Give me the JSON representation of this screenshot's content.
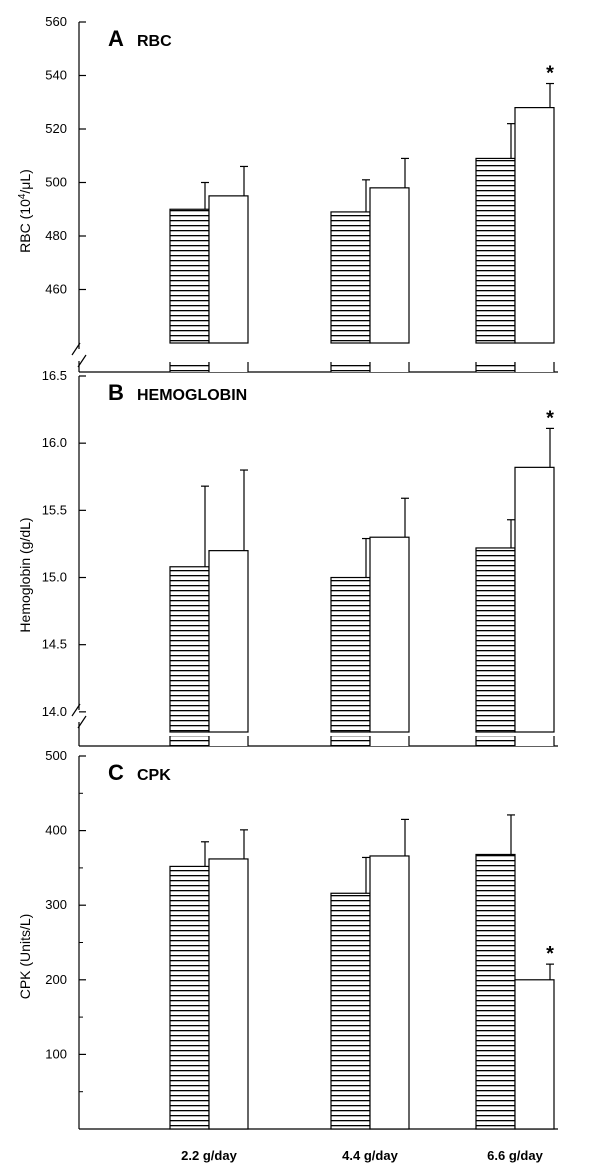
{
  "categories": [
    "2.2 g/day",
    "4.4 g/day",
    "6.6 g/day"
  ],
  "colors": {
    "line": "#000000",
    "stripe": "#000000",
    "open": "#ffffff"
  },
  "chart_data": [
    {
      "type": "bar",
      "letter": "A",
      "title": "RBC",
      "ylabel_main": "RBC (10",
      "ylabel_sup": "4",
      "ylabel_tail": "/μL)",
      "ylim": [
        440,
        560
      ],
      "ticks": [
        460,
        480,
        500,
        520,
        540,
        560
      ],
      "axis_break": true,
      "categories": [
        "2.2 g/day",
        "4.4 g/day",
        "6.6 g/day"
      ],
      "series": [
        {
          "pattern": "horizontal-stripes",
          "values": [
            490,
            489,
            509
          ],
          "errors": [
            10,
            12,
            13
          ]
        },
        {
          "pattern": "open",
          "values": [
            495,
            498,
            528
          ],
          "errors": [
            11,
            11,
            9
          ]
        }
      ],
      "significance": [
        {
          "category": "6.6 g/day",
          "series": 1,
          "label": "*"
        }
      ]
    },
    {
      "type": "bar",
      "letter": "B",
      "title": "HEMOGLOBIN",
      "ylabel_main": "Hemoglobin (g/dL)",
      "ylabel_sup": "",
      "ylabel_tail": "",
      "ylim": [
        13.85,
        16.5
      ],
      "ticks": [
        14.0,
        14.5,
        15.0,
        15.5,
        16.0,
        16.5
      ],
      "tick_decimals": 1,
      "axis_break": true,
      "categories": [
        "2.2 g/day",
        "4.4 g/day",
        "6.6 g/day"
      ],
      "series": [
        {
          "pattern": "horizontal-stripes",
          "values": [
            15.08,
            15.0,
            15.22
          ],
          "errors": [
            0.6,
            0.29,
            0.21
          ]
        },
        {
          "pattern": "open",
          "values": [
            15.2,
            15.3,
            15.82
          ],
          "errors": [
            0.6,
            0.29,
            0.29
          ]
        }
      ],
      "significance": [
        {
          "category": "6.6 g/day",
          "series": 1,
          "label": "*"
        }
      ]
    },
    {
      "type": "bar",
      "letter": "C",
      "title": "CPK",
      "ylabel_main": "CPK (Units/L)",
      "ylabel_sup": "",
      "ylabel_tail": "",
      "ylim": [
        0,
        500
      ],
      "ticks": [
        100,
        200,
        300,
        400,
        500
      ],
      "minor_ticks": [
        50,
        150,
        250,
        350,
        450
      ],
      "axis_break": false,
      "categories": [
        "2.2 g/day",
        "4.4 g/day",
        "6.6 g/day"
      ],
      "series": [
        {
          "pattern": "horizontal-stripes",
          "values": [
            352,
            316,
            368
          ],
          "errors": [
            33,
            48,
            53
          ]
        },
        {
          "pattern": "open",
          "values": [
            362,
            366,
            200
          ],
          "errors": [
            39,
            49,
            21
          ]
        }
      ],
      "significance": [
        {
          "category": "6.6 g/day",
          "series": 1,
          "label": "*"
        }
      ]
    }
  ]
}
